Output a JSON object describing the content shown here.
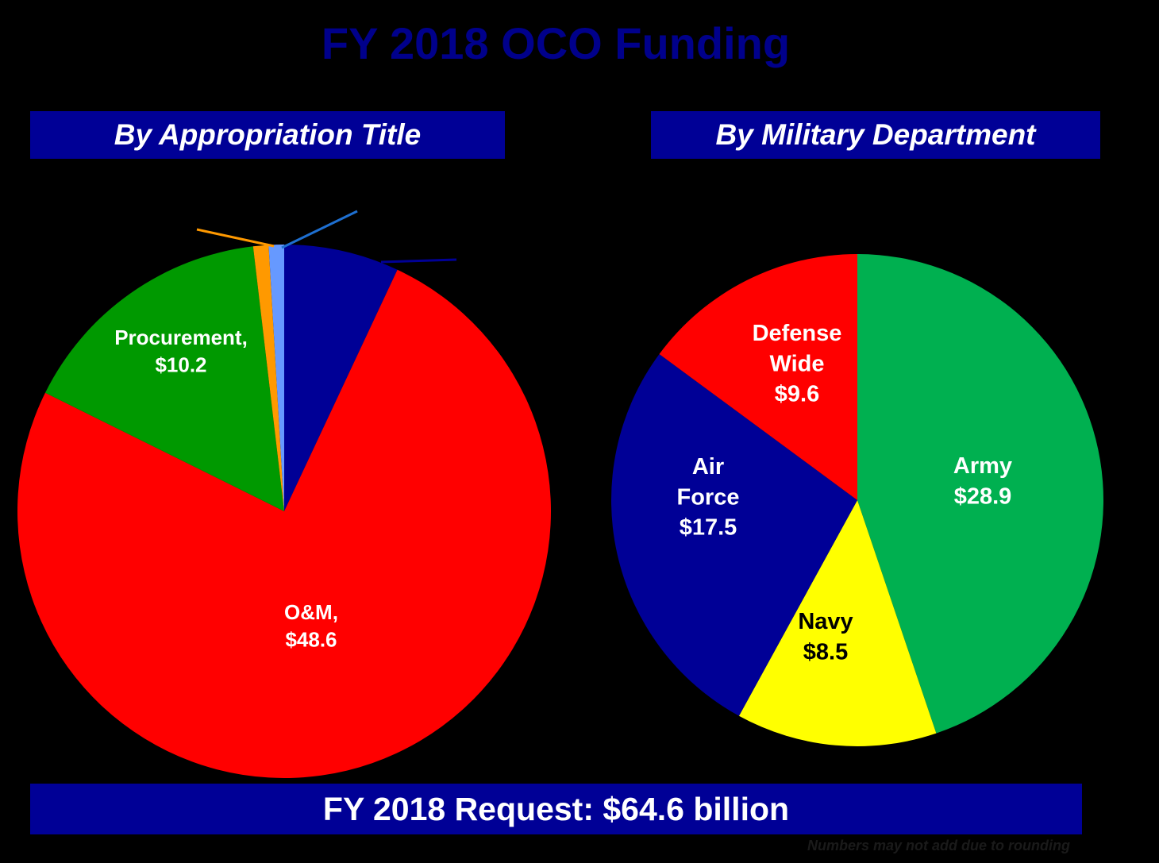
{
  "title": "FY 2018 OCO Funding",
  "footer": {
    "request": "FY 2018 Request:  $64.6 billion",
    "note": "Numbers may not add due to rounding"
  },
  "chart_data": [
    {
      "type": "pie",
      "title": "By Appropriation Title",
      "slices": [
        {
          "label": "",
          "value": 4.5,
          "color": "#000096",
          "leader_color": "#000096"
        },
        {
          "label": "O&M, $48.6",
          "lines": [
            "O&M,",
            "$48.6"
          ],
          "value": 48.6,
          "color": "#ff0000"
        },
        {
          "label": "Procurement, $10.2",
          "lines": [
            "Procurement,",
            "$10.2"
          ],
          "value": 10.2,
          "color": "#009900"
        },
        {
          "label": "",
          "value": 0.6,
          "color": "#ff9900",
          "leader_color": "#ff9900"
        },
        {
          "label": "",
          "value": 0.6,
          "color": "#6699ff",
          "leader_color": "#1e6fd0"
        }
      ]
    },
    {
      "type": "pie",
      "title": "By Military Department",
      "slices": [
        {
          "label": "Army $28.9",
          "lines": [
            "Army",
            "$28.9"
          ],
          "value": 28.9,
          "color": "#00b050"
        },
        {
          "label": "Navy $8.5",
          "lines": [
            "Navy",
            "$8.5"
          ],
          "value": 8.5,
          "color": "#ffff00"
        },
        {
          "label": "Air Force $17.5",
          "lines": [
            "Air",
            "Force",
            "$17.5"
          ],
          "value": 17.5,
          "color": "#000096"
        },
        {
          "label": "Defense Wide $9.6",
          "lines": [
            "Defense",
            "Wide",
            "$9.6"
          ],
          "value": 9.6,
          "color": "#ff0000"
        }
      ]
    }
  ]
}
